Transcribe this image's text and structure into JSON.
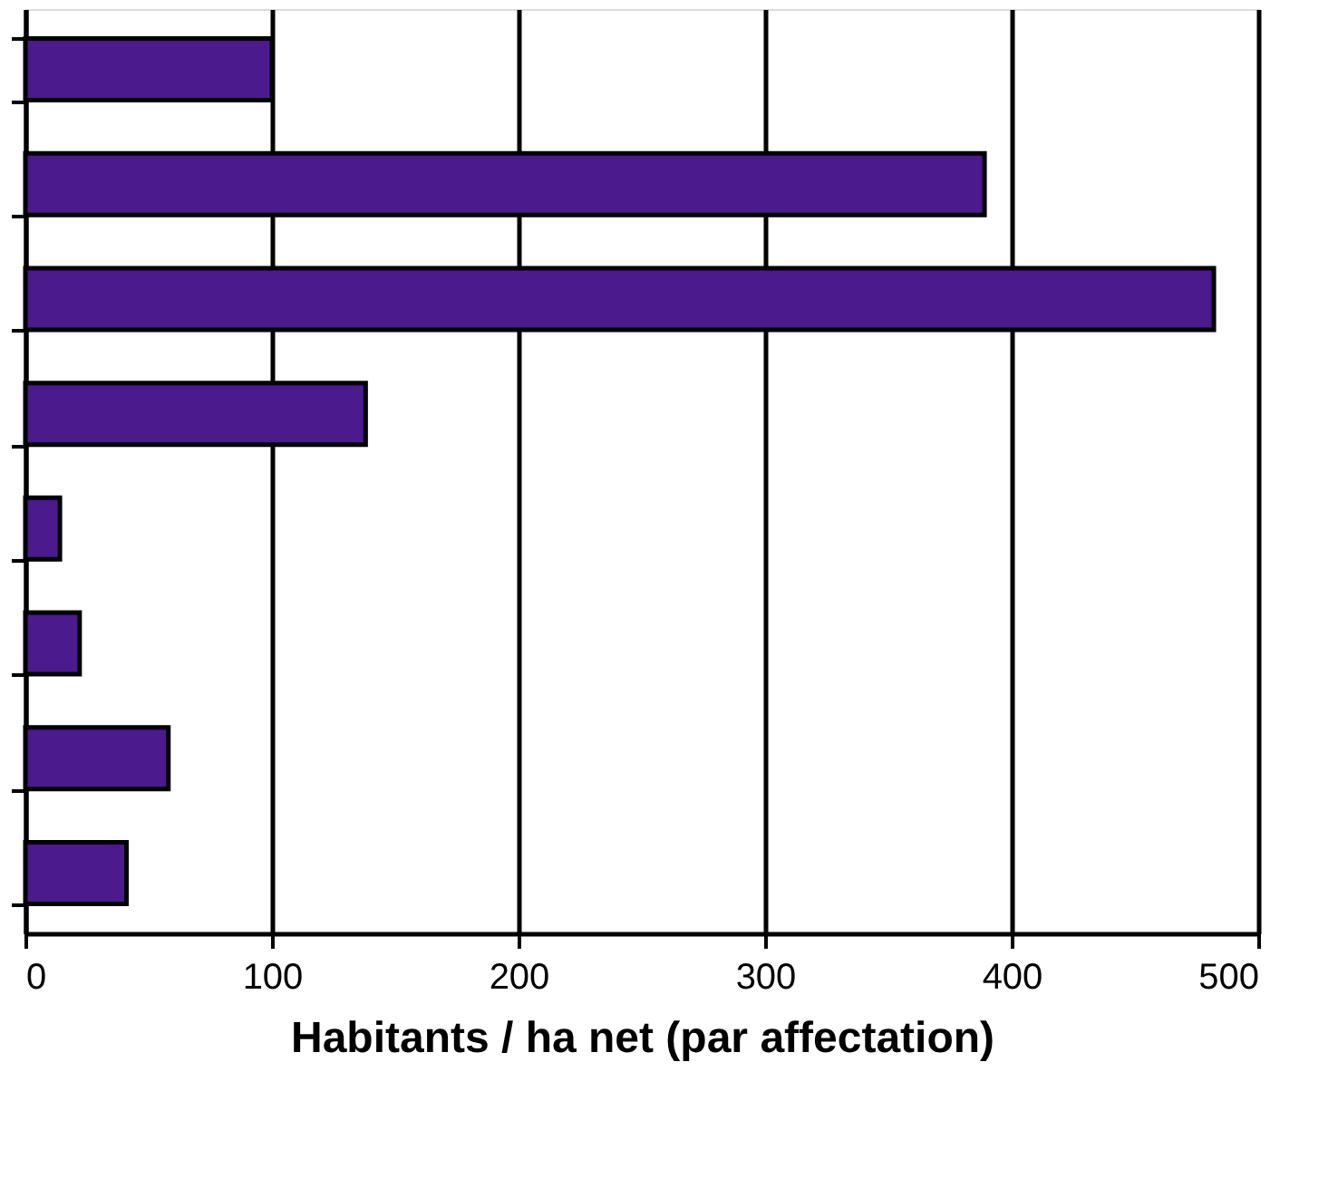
{
  "chart_data": {
    "type": "bar",
    "orientation": "horizontal",
    "xlabel": "Habitants / ha net (par affectation)",
    "categories": [
      null,
      null,
      null,
      null,
      null,
      null,
      null,
      null
    ],
    "values": [
      100,
      389,
      482,
      138,
      14,
      22,
      58,
      41
    ],
    "color": "#4b1a8c",
    "xlim": [
      0,
      500
    ],
    "xticks": [
      0,
      100,
      200,
      300,
      400,
      500
    ],
    "grid": "x",
    "tick_labels": "x"
  }
}
